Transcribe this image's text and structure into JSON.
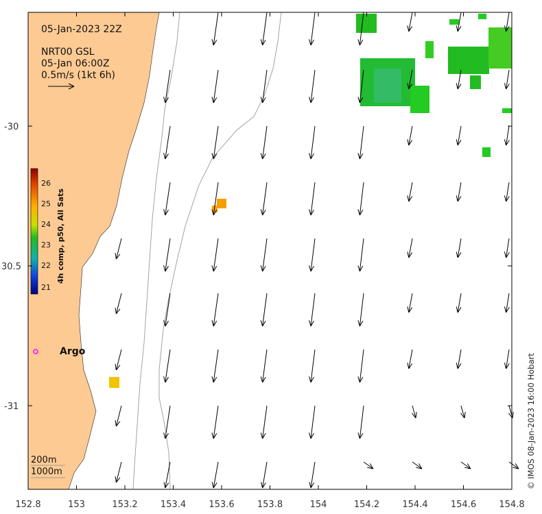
{
  "header": {
    "date": "05-Jan-2023 22Z",
    "product": "NRT00 GSL",
    "product_time": "05-Jan 06:00Z",
    "scale_label": "0.5m/s (1kt 6h)"
  },
  "colorbar": {
    "label": "4h comp, p50, All Sats",
    "ticks": [
      "26",
      "25",
      "24",
      "23",
      "22",
      "21"
    ]
  },
  "marker": {
    "label": "Argo",
    "color": "#ff00ff"
  },
  "legend": {
    "depth_1": "200m",
    "depth_2": "1000m"
  },
  "credit": "© IMOS 08-Jan-2023 16:00 Hobart",
  "axes": {
    "x_ticks": [
      "152.8",
      "153",
      "153.2",
      "153.4",
      "153.6",
      "153.8",
      "154",
      "154.2",
      "154.4",
      "154.6",
      "154.8"
    ],
    "y_ticks": [
      "-30",
      "30.5",
      "-31"
    ]
  },
  "chart_data": {
    "type": "map",
    "x_range": [
      152.8,
      154.8
    ],
    "y_range": [
      -31.3,
      -29.6
    ],
    "colors": {
      "land": "#fdca94",
      "contour": "#999999",
      "arrow": "#000000"
    }
  }
}
